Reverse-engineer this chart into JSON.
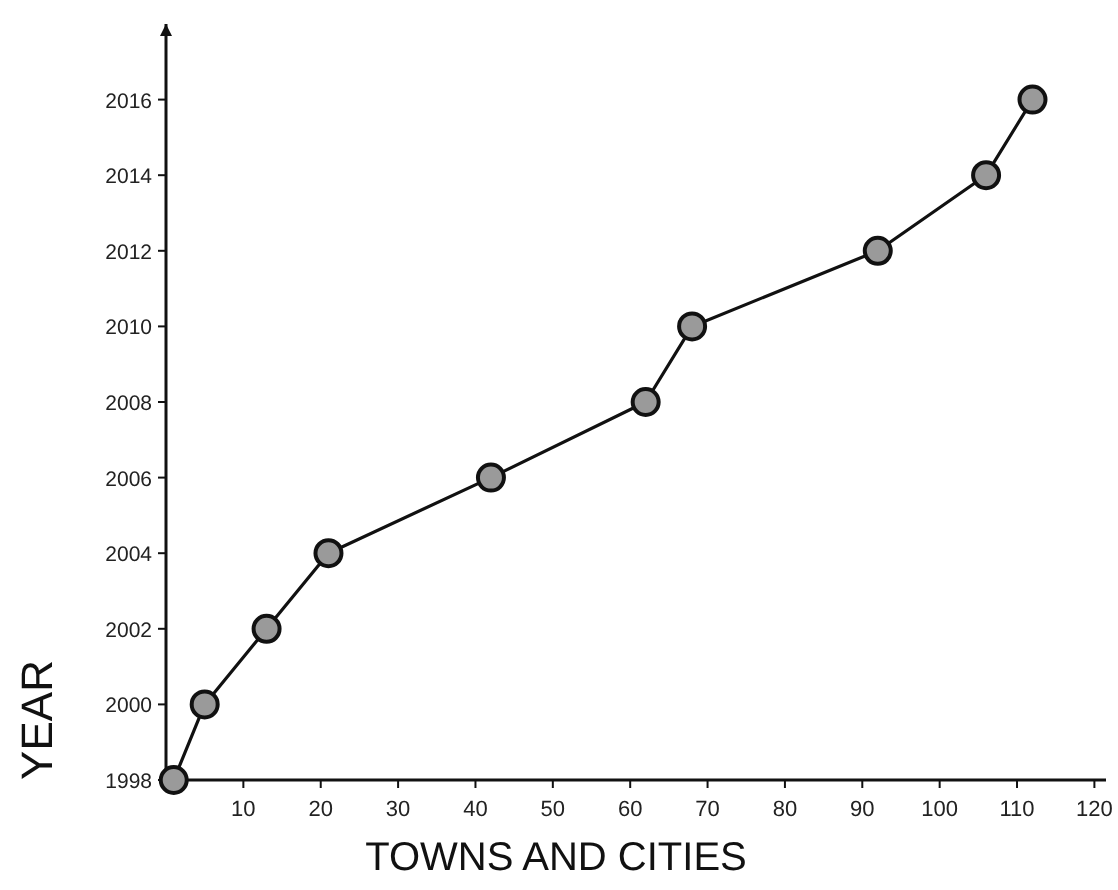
{
  "chart_data": {
    "type": "line",
    "xlabel": "TOWNS AND CITIES",
    "ylabel": "YEAR",
    "x": [
      1,
      5,
      13,
      21,
      42,
      62,
      68,
      92,
      106,
      112
    ],
    "series": [
      {
        "color": "#111111",
        "values": [
          1998,
          2000,
          2002,
          2004,
          2006,
          2008,
          2010,
          2012,
          2014,
          2016
        ]
      }
    ],
    "xlim": [
      0,
      121.5
    ],
    "ylim": [
      1998,
      2018
    ],
    "xticks": [
      10,
      20,
      30,
      40,
      50,
      60,
      70,
      80,
      90,
      100,
      110,
      120
    ],
    "yticks": [
      1998,
      2000,
      2002,
      2004,
      2006,
      2008,
      2010,
      2012,
      2014,
      2016
    ],
    "marker": "circle",
    "line_style": "solid",
    "grid": false
  }
}
